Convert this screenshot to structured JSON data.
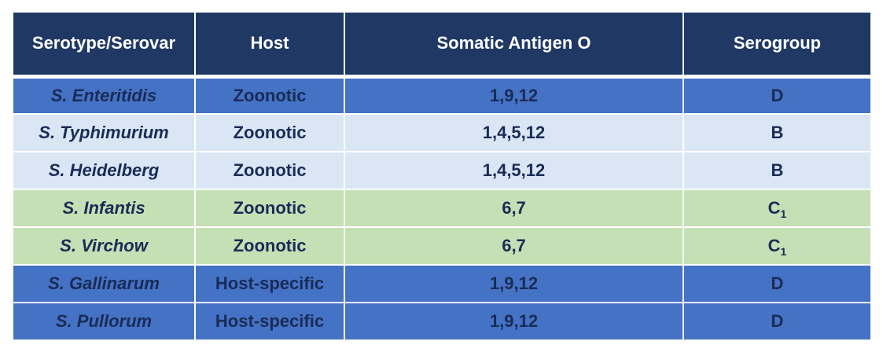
{
  "table": {
    "headers": [
      "Serotype/Serovar",
      "Host",
      "Somatic Antigen O",
      "Serogroup"
    ],
    "rows": [
      {
        "serotype": "S. Enteritidis",
        "host": "Zoonotic",
        "antigen": "1,9,12",
        "serogroup": "D",
        "serogroup_sub": "",
        "tone": "blue-dark"
      },
      {
        "serotype": "S. Typhimurium",
        "host": "Zoonotic",
        "antigen": "1,4,5,12",
        "serogroup": "B",
        "serogroup_sub": "",
        "tone": "blue-light"
      },
      {
        "serotype": "S. Heidelberg",
        "host": "Zoonotic",
        "antigen": "1,4,5,12",
        "serogroup": "B",
        "serogroup_sub": "",
        "tone": "blue-light"
      },
      {
        "serotype": "S. Infantis",
        "host": "Zoonotic",
        "antigen": "6,7",
        "serogroup": "C",
        "serogroup_sub": "1",
        "tone": "green"
      },
      {
        "serotype": "S. Virchow",
        "host": "Zoonotic",
        "antigen": "6,7",
        "serogroup": "C",
        "serogroup_sub": "1",
        "tone": "green"
      },
      {
        "serotype": "S. Gallinarum",
        "host": "Host-specific",
        "antigen": "1,9,12",
        "serogroup": "D",
        "serogroup_sub": "",
        "tone": "blue-dark"
      },
      {
        "serotype": "S. Pullorum",
        "host": "Host-specific",
        "antigen": "1,9,12",
        "serogroup": "D",
        "serogroup_sub": "",
        "tone": "blue-dark"
      }
    ]
  },
  "colors": {
    "header_bg": "#1f3864",
    "row_blue_dark": "#4472c4",
    "row_blue_light": "#dae6f4",
    "row_green": "#c5e0b4",
    "text_dark": "#1a2b57"
  }
}
